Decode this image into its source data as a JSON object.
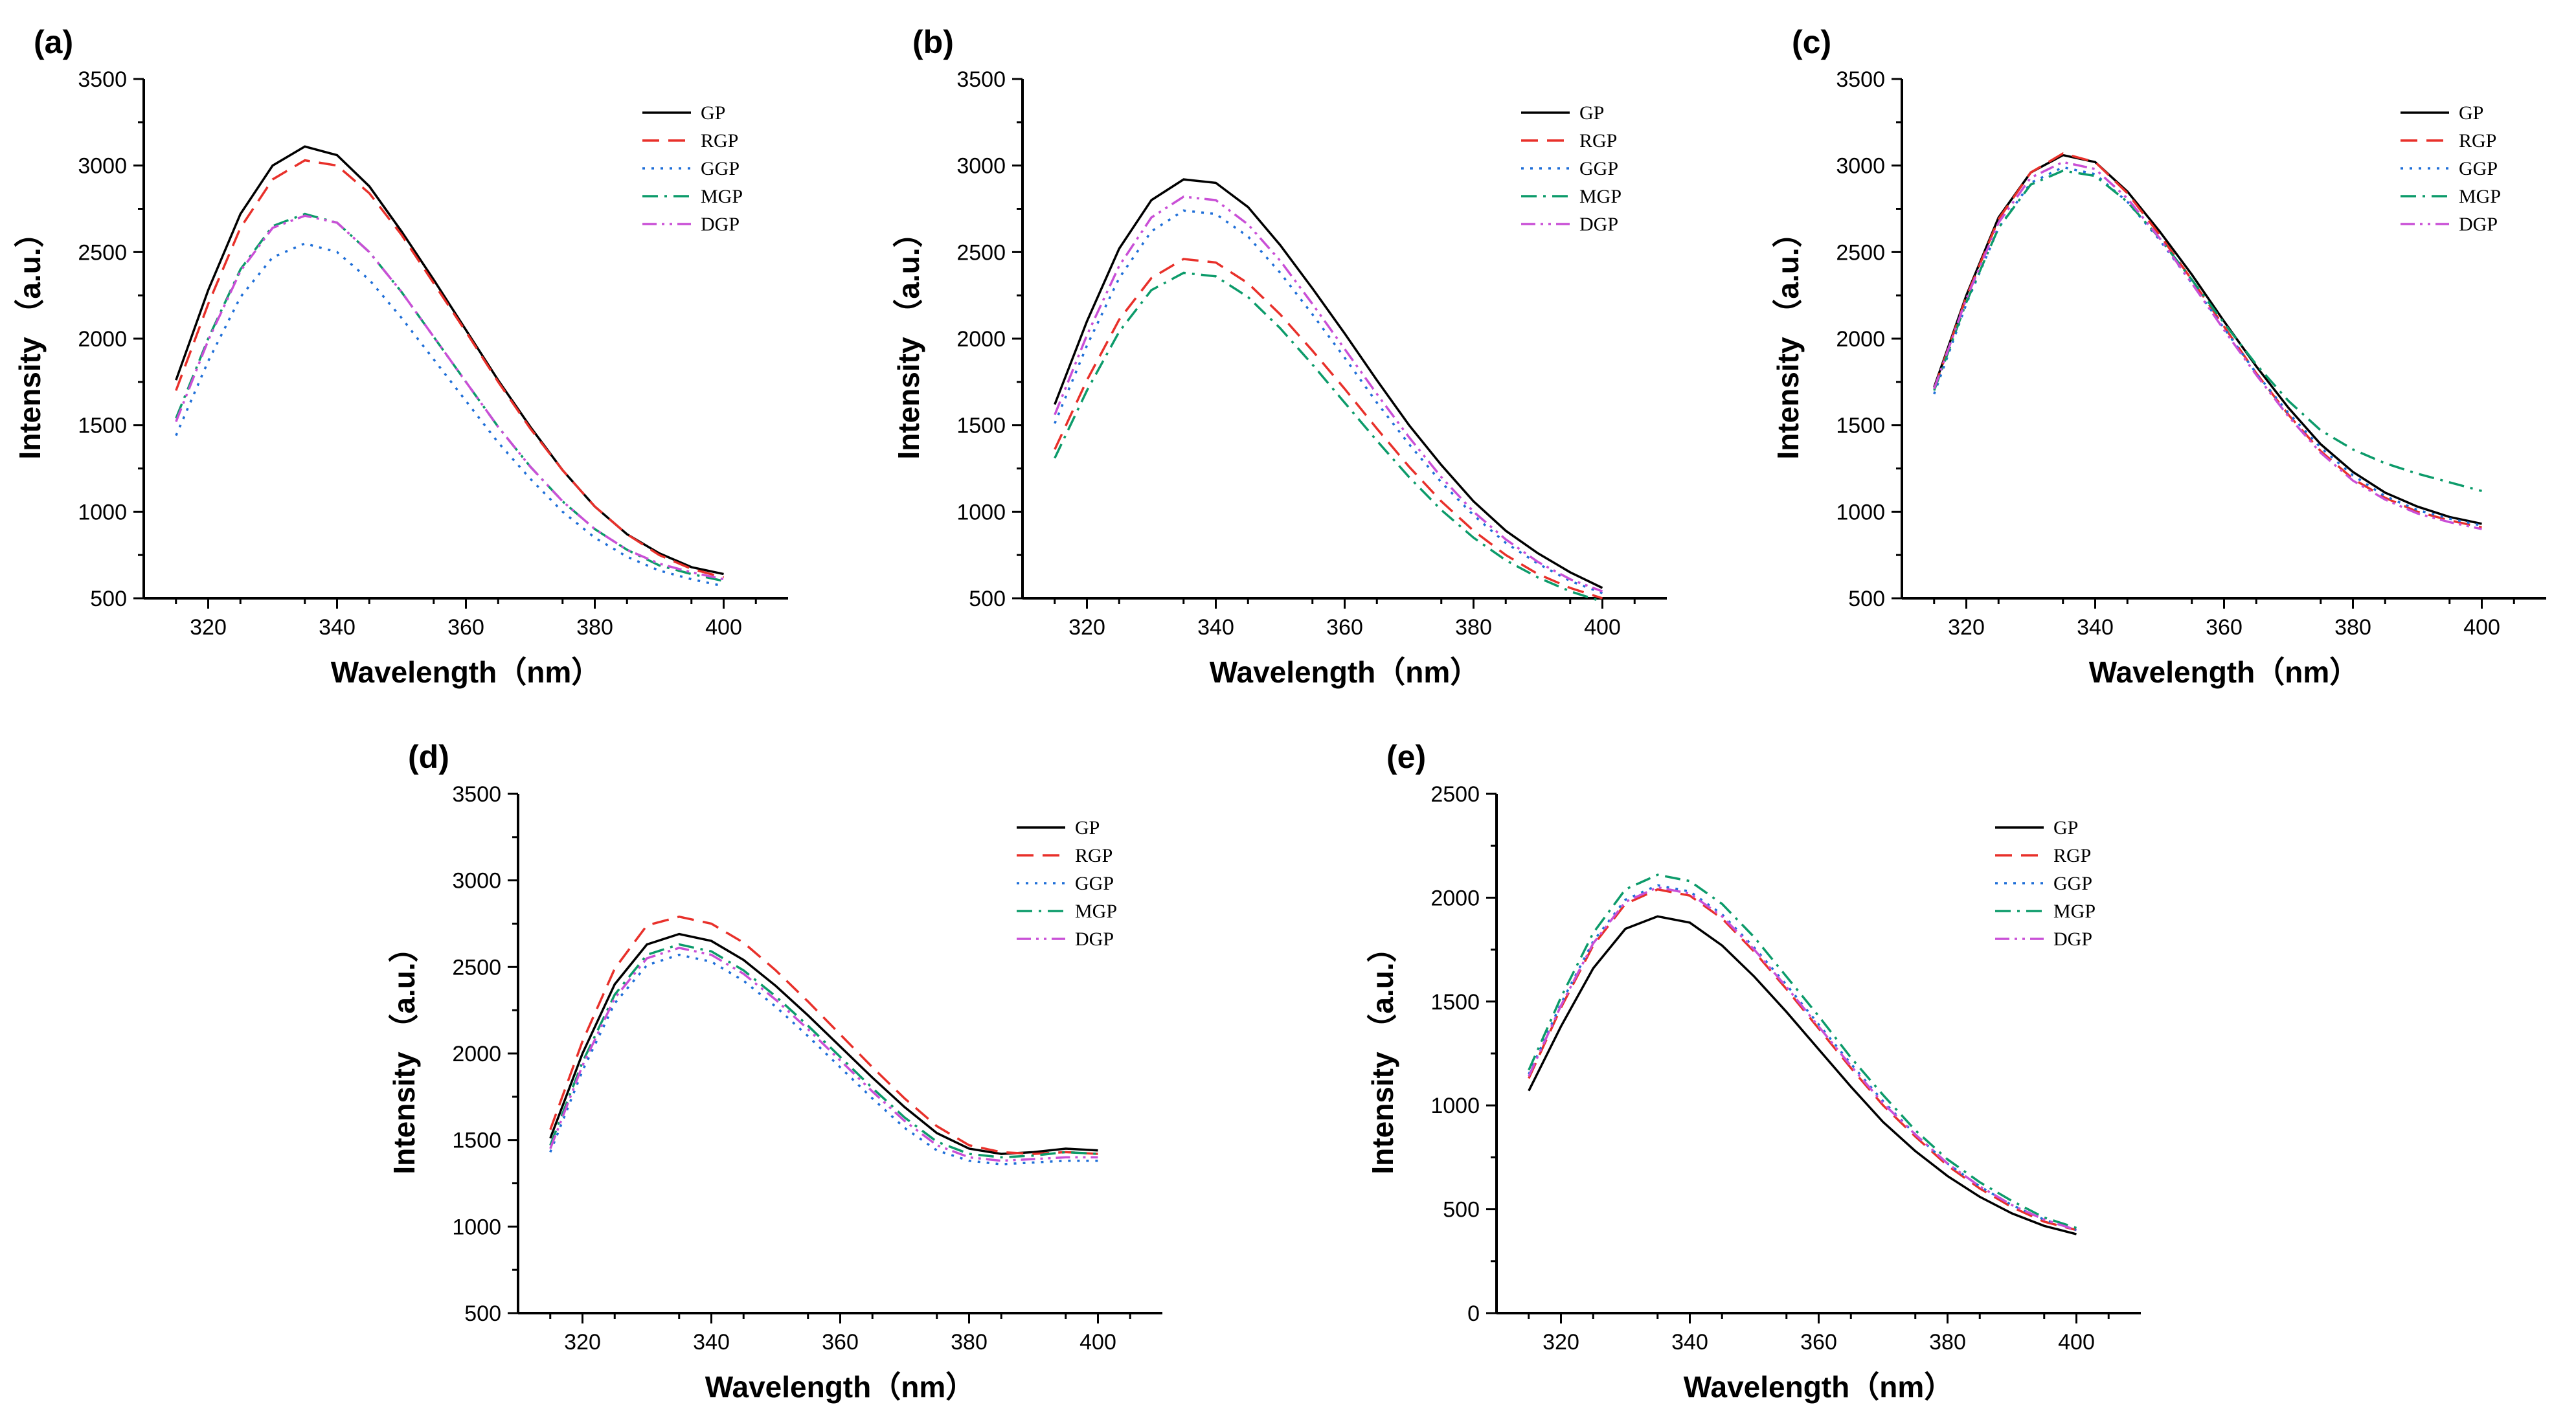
{
  "figure": {
    "xlabel": "Wavelength（nm）",
    "ylabel": "Intensity （a.u.）"
  },
  "series_styles": [
    {
      "name": "GP",
      "color": "#000000",
      "dash": "solid"
    },
    {
      "name": "RGP",
      "color": "#e8302a",
      "dash": "dash"
    },
    {
      "name": "GGP",
      "color": "#1f6fd8",
      "dash": "dot"
    },
    {
      "name": "MGP",
      "color": "#0c9b6a",
      "dash": "dashdot"
    },
    {
      "name": "DGP",
      "color": "#c94fd6",
      "dash": "dashdotdot"
    }
  ],
  "chart_data": [
    {
      "type": "line",
      "panel": "(a)",
      "title": "",
      "xlabel": "Wavelength（nm）",
      "ylabel": "Intensity （a.u.）",
      "xlim": [
        310,
        410
      ],
      "ylim": [
        500,
        3500
      ],
      "xticks": [
        320,
        340,
        360,
        380,
        400
      ],
      "yticks": [
        500,
        1000,
        1500,
        2000,
        2500,
        3000,
        3500
      ],
      "legend": "top-right",
      "x": [
        315,
        320,
        325,
        330,
        335,
        340,
        345,
        350,
        355,
        360,
        365,
        370,
        375,
        380,
        385,
        390,
        395,
        400
      ],
      "series": [
        {
          "name": "GP",
          "values": [
            1760,
            2280,
            2720,
            3000,
            3110,
            3060,
            2880,
            2620,
            2340,
            2050,
            1760,
            1490,
            1240,
            1030,
            870,
            760,
            680,
            640
          ]
        },
        {
          "name": "RGP",
          "values": [
            1700,
            2200,
            2640,
            2920,
            3030,
            3000,
            2840,
            2600,
            2320,
            2040,
            1750,
            1480,
            1240,
            1030,
            870,
            750,
            670,
            620
          ]
        },
        {
          "name": "GGP",
          "values": [
            1440,
            1870,
            2240,
            2470,
            2550,
            2500,
            2340,
            2120,
            1880,
            1640,
            1400,
            1190,
            1000,
            850,
            740,
            660,
            610,
            570
          ]
        },
        {
          "name": "MGP",
          "values": [
            1540,
            2000,
            2400,
            2650,
            2720,
            2670,
            2500,
            2270,
            2010,
            1750,
            1490,
            1260,
            1060,
            900,
            780,
            690,
            640,
            600
          ]
        },
        {
          "name": "DGP",
          "values": [
            1520,
            1990,
            2390,
            2640,
            2710,
            2670,
            2500,
            2270,
            2010,
            1750,
            1490,
            1260,
            1060,
            900,
            780,
            700,
            650,
            610
          ]
        }
      ]
    },
    {
      "type": "line",
      "panel": "(b)",
      "title": "",
      "xlabel": "Wavelength（nm）",
      "ylabel": "Intensity （a.u.）",
      "xlim": [
        310,
        410
      ],
      "ylim": [
        500,
        3500
      ],
      "xticks": [
        320,
        340,
        360,
        380,
        400
      ],
      "yticks": [
        500,
        1000,
        1500,
        2000,
        2500,
        3000,
        3500
      ],
      "legend": "top-right",
      "x": [
        315,
        320,
        325,
        330,
        335,
        340,
        345,
        350,
        355,
        360,
        365,
        370,
        375,
        380,
        385,
        390,
        395,
        400
      ],
      "series": [
        {
          "name": "GP",
          "values": [
            1620,
            2100,
            2520,
            2800,
            2920,
            2900,
            2760,
            2540,
            2290,
            2030,
            1760,
            1500,
            1270,
            1060,
            890,
            760,
            650,
            560
          ]
        },
        {
          "name": "RGP",
          "values": [
            1360,
            1760,
            2110,
            2350,
            2460,
            2440,
            2320,
            2140,
            1930,
            1710,
            1480,
            1260,
            1060,
            890,
            750,
            640,
            560,
            500
          ]
        },
        {
          "name": "GGP",
          "values": [
            1510,
            1960,
            2350,
            2620,
            2740,
            2720,
            2590,
            2380,
            2140,
            1890,
            1630,
            1390,
            1170,
            980,
            820,
            700,
            600,
            530
          ]
        },
        {
          "name": "MGP",
          "values": [
            1310,
            1700,
            2040,
            2280,
            2380,
            2360,
            2240,
            2060,
            1850,
            1630,
            1410,
            1200,
            1010,
            850,
            720,
            620,
            540,
            480
          ]
        },
        {
          "name": "DGP",
          "values": [
            1560,
            2020,
            2420,
            2700,
            2820,
            2800,
            2660,
            2450,
            2200,
            1940,
            1680,
            1430,
            1200,
            1000,
            840,
            710,
            610,
            540
          ]
        }
      ]
    },
    {
      "type": "line",
      "panel": "(c)",
      "title": "",
      "xlabel": "Wavelength（nm）",
      "ylabel": "Intensity （a.u.）",
      "xlim": [
        310,
        410
      ],
      "ylim": [
        500,
        3500
      ],
      "xticks": [
        320,
        340,
        360,
        380,
        400
      ],
      "yticks": [
        500,
        1000,
        1500,
        2000,
        2500,
        3000,
        3500
      ],
      "legend": "top-right",
      "x": [
        315,
        320,
        325,
        330,
        335,
        340,
        345,
        350,
        355,
        360,
        365,
        370,
        375,
        380,
        385,
        390,
        395,
        400
      ],
      "series": [
        {
          "name": "GP",
          "values": [
            1720,
            2250,
            2700,
            2960,
            3060,
            3020,
            2850,
            2620,
            2370,
            2100,
            1840,
            1600,
            1390,
            1230,
            1110,
            1030,
            970,
            930
          ]
        },
        {
          "name": "RGP",
          "values": [
            1710,
            2240,
            2690,
            2960,
            3070,
            3020,
            2840,
            2600,
            2340,
            2070,
            1800,
            1560,
            1350,
            1190,
            1080,
            1000,
            950,
            910
          ]
        },
        {
          "name": "GGP",
          "values": [
            1680,
            2200,
            2640,
            2900,
            2990,
            2950,
            2790,
            2570,
            2320,
            2060,
            1800,
            1570,
            1370,
            1210,
            1090,
            1010,
            960,
            920
          ]
        },
        {
          "name": "MGP",
          "values": [
            1700,
            2210,
            2640,
            2890,
            2970,
            2940,
            2790,
            2580,
            2340,
            2090,
            1850,
            1640,
            1470,
            1360,
            1280,
            1220,
            1170,
            1120
          ]
        },
        {
          "name": "DGP",
          "values": [
            1710,
            2230,
            2670,
            2930,
            3020,
            2980,
            2810,
            2580,
            2320,
            2050,
            1790,
            1550,
            1340,
            1180,
            1070,
            990,
            940,
            900
          ]
        }
      ]
    },
    {
      "type": "line",
      "panel": "(d)",
      "title": "",
      "xlabel": "Wavelength（nm）",
      "ylabel": "Intensity （a.u.）",
      "xlim": [
        310,
        410
      ],
      "ylim": [
        500,
        3500
      ],
      "xticks": [
        320,
        340,
        360,
        380,
        400
      ],
      "yticks": [
        500,
        1000,
        1500,
        2000,
        2500,
        3000,
        3500
      ],
      "legend": "top-right",
      "x": [
        315,
        320,
        325,
        330,
        335,
        340,
        345,
        350,
        355,
        360,
        365,
        370,
        375,
        380,
        385,
        390,
        395,
        400
      ],
      "series": [
        {
          "name": "GP",
          "values": [
            1510,
            2000,
            2400,
            2630,
            2690,
            2650,
            2540,
            2390,
            2220,
            2040,
            1860,
            1690,
            1540,
            1450,
            1420,
            1430,
            1450,
            1440
          ]
        },
        {
          "name": "RGP",
          "values": [
            1560,
            2070,
            2490,
            2740,
            2790,
            2750,
            2640,
            2480,
            2300,
            2110,
            1920,
            1740,
            1580,
            1470,
            1430,
            1420,
            1430,
            1420
          ]
        },
        {
          "name": "GGP",
          "values": [
            1430,
            1900,
            2290,
            2510,
            2570,
            2530,
            2420,
            2270,
            2100,
            1920,
            1740,
            1570,
            1440,
            1380,
            1360,
            1370,
            1380,
            1380
          ]
        },
        {
          "name": "MGP",
          "values": [
            1470,
            1950,
            2340,
            2570,
            2630,
            2590,
            2480,
            2330,
            2160,
            1980,
            1800,
            1630,
            1490,
            1420,
            1400,
            1410,
            1430,
            1420
          ]
        },
        {
          "name": "DGP",
          "values": [
            1450,
            1930,
            2320,
            2550,
            2610,
            2570,
            2460,
            2310,
            2140,
            1960,
            1780,
            1610,
            1470,
            1400,
            1380,
            1390,
            1400,
            1400
          ]
        }
      ]
    },
    {
      "type": "line",
      "panel": "(e)",
      "title": "",
      "xlabel": "Wavelength（nm）",
      "ylabel": "Intensity （a.u.）",
      "xlim": [
        310,
        410
      ],
      "ylim": [
        0,
        2500
      ],
      "xticks": [
        320,
        340,
        360,
        380,
        400
      ],
      "yticks": [
        0,
        500,
        1000,
        1500,
        2000,
        2500
      ],
      "legend": "top-right",
      "x": [
        315,
        320,
        325,
        330,
        335,
        340,
        345,
        350,
        355,
        360,
        365,
        370,
        375,
        380,
        385,
        390,
        395,
        400
      ],
      "series": [
        {
          "name": "GP",
          "values": [
            1070,
            1380,
            1660,
            1850,
            1910,
            1880,
            1770,
            1620,
            1450,
            1270,
            1090,
            920,
            780,
            660,
            560,
            480,
            420,
            380
          ]
        },
        {
          "name": "RGP",
          "values": [
            1130,
            1470,
            1770,
            1970,
            2040,
            2010,
            1900,
            1740,
            1560,
            1370,
            1180,
            1000,
            850,
            710,
            600,
            510,
            440,
            400
          ]
        },
        {
          "name": "GGP",
          "values": [
            1150,
            1490,
            1790,
            1990,
            2060,
            2030,
            1920,
            1760,
            1580,
            1390,
            1200,
            1020,
            860,
            720,
            610,
            520,
            450,
            400
          ]
        },
        {
          "name": "MGP",
          "values": [
            1170,
            1520,
            1830,
            2040,
            2110,
            2080,
            1970,
            1810,
            1620,
            1430,
            1230,
            1050,
            880,
            740,
            630,
            540,
            460,
            410
          ]
        },
        {
          "name": "DGP",
          "values": [
            1140,
            1480,
            1780,
            1980,
            2050,
            2020,
            1910,
            1750,
            1570,
            1380,
            1190,
            1010,
            860,
            720,
            610,
            520,
            450,
            400
          ]
        }
      ]
    }
  ]
}
